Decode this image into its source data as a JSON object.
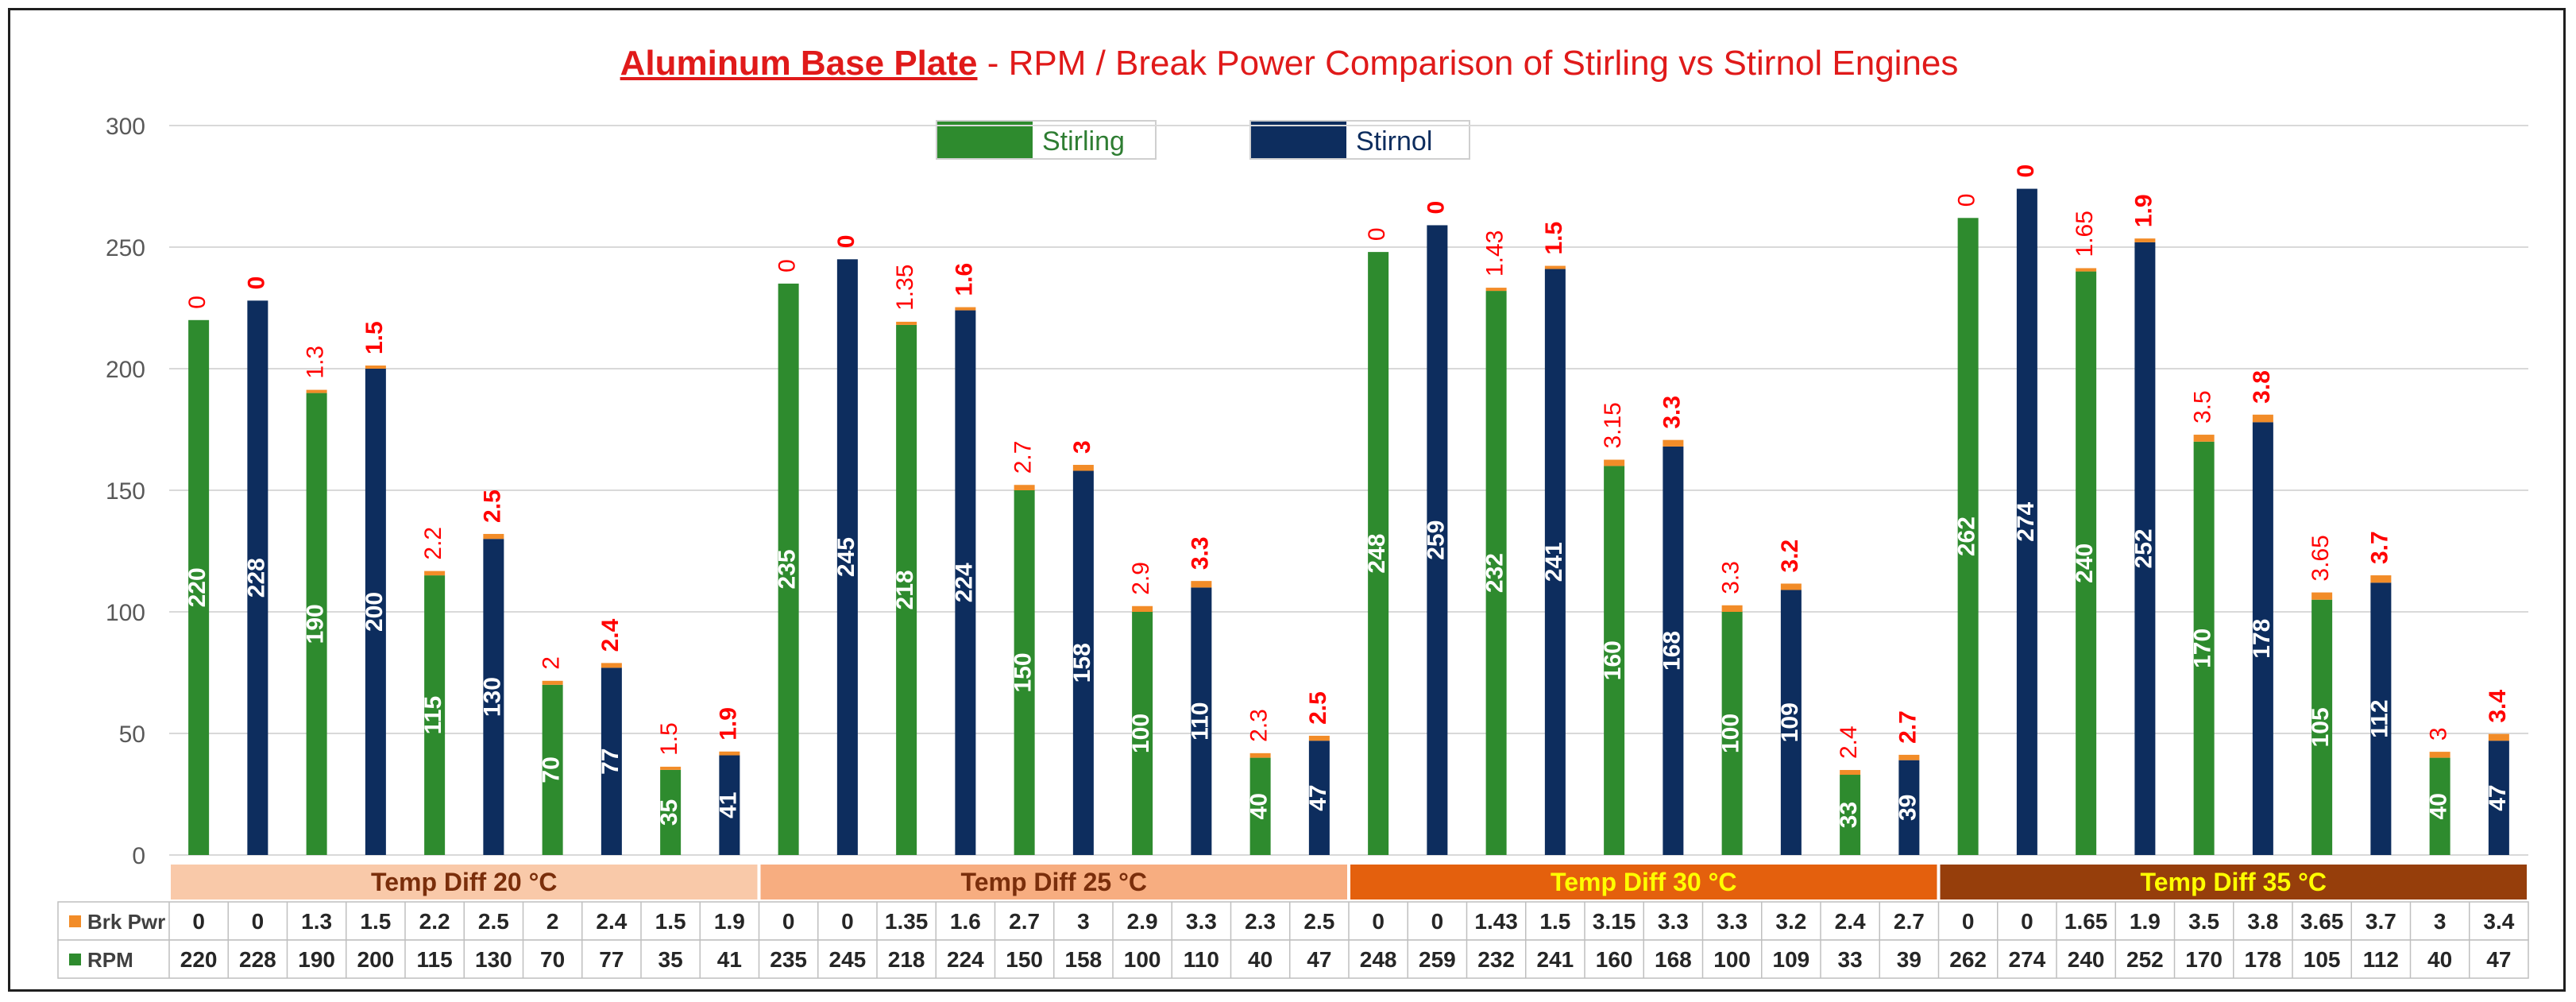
{
  "chart_data": {
    "type": "bar",
    "title_bold": "Aluminum Base Plate",
    "title_rest": " - RPM / Break Power Comparison of Stirling vs Stirnol Engines",
    "ylim": [
      0,
      300
    ],
    "yticks": [
      0,
      50,
      100,
      150,
      200,
      250,
      300
    ],
    "legend": [
      {
        "name": "Stirling",
        "color": "#2e8b2e"
      },
      {
        "name": "Stirnol",
        "color": "#0d2d5e"
      }
    ],
    "groups": [
      {
        "label": "Temp Diff 20 °C",
        "fill": "#f9c9a9",
        "text_color": "#7a2e0b"
      },
      {
        "label": "Temp Diff 25 °C",
        "fill": "#f7ad80",
        "text_color": "#7a2e0b"
      },
      {
        "label": "Temp Diff 30 °C",
        "fill": "#e4600d",
        "text_color": "#ffff00"
      },
      {
        "label": "Temp Diff 35 °C",
        "fill": "#963e0b",
        "text_color": "#ffff00"
      }
    ],
    "rpm": [
      220,
      228,
      190,
      200,
      115,
      130,
      70,
      77,
      35,
      41,
      235,
      245,
      218,
      224,
      150,
      158,
      100,
      110,
      40,
      47,
      248,
      259,
      232,
      241,
      160,
      168,
      100,
      109,
      33,
      39,
      262,
      274,
      240,
      252,
      170,
      178,
      105,
      112,
      40,
      47
    ],
    "brk_pwr": [
      "0",
      "0",
      "1.3",
      "1.5",
      "2.2",
      "2.5",
      "2",
      "2.4",
      "1.5",
      "1.9",
      "0",
      "0",
      "1.35",
      "1.6",
      "2.7",
      "3",
      "2.9",
      "3.3",
      "2.3",
      "2.5",
      "0",
      "0",
      "1.43",
      "1.5",
      "3.15",
      "3.3",
      "3.3",
      "3.2",
      "2.4",
      "2.7",
      "0",
      "0",
      "1.65",
      "1.9",
      "3.5",
      "3.8",
      "3.65",
      "3.7",
      "3",
      "3.4"
    ],
    "table_rows": [
      {
        "label": "Brk Pwr",
        "color": "#f28c28"
      },
      {
        "label": "RPM",
        "color": "#2e8b2e"
      }
    ],
    "colors": {
      "stirling": "#2e8b2e",
      "stirnol": "#0d2d5e",
      "brk_cap": "#f28c28",
      "label_red": "#ff0000"
    }
  }
}
